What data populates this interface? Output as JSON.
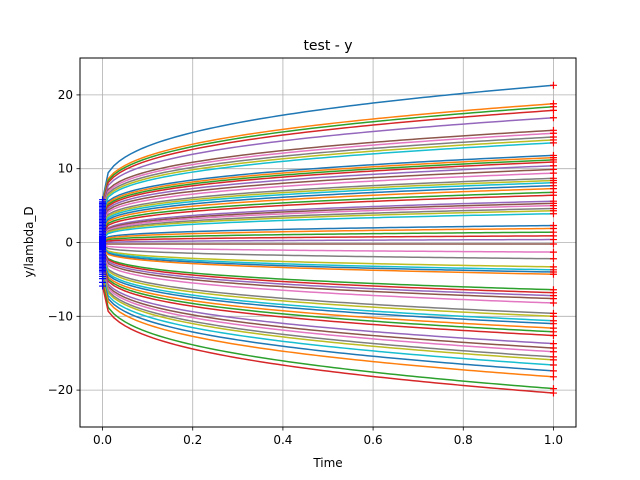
{
  "chart_data": {
    "type": "line",
    "title": "test - y",
    "xlabel": "Time",
    "ylabel": "y/lambda_D",
    "xlim": [
      -0.05,
      1.05
    ],
    "ylim": [
      -25,
      25
    ],
    "xticks": [
      0.0,
      0.2,
      0.4,
      0.6,
      0.8,
      1.0
    ],
    "xtick_labels": [
      "0.0",
      "0.2",
      "0.4",
      "0.6",
      "0.8",
      "1.0"
    ],
    "yticks": [
      -20,
      -10,
      0,
      10,
      20
    ],
    "ytick_labels": [
      "−20",
      "−10",
      "0",
      "10",
      "20"
    ],
    "grid": true,
    "start_marker": {
      "symbol": "+",
      "color": "#0000ff"
    },
    "end_marker": {
      "symbol": "+",
      "color": "#ff0000"
    },
    "curve_shape": "y(t) = y0 + (y1 - y0) * t^0.33",
    "palette": [
      "#1f77b4",
      "#ff7f0e",
      "#2ca02c",
      "#d62728",
      "#9467bd",
      "#8c564b",
      "#e377c2",
      "#7f7f7f",
      "#bcbd22",
      "#17becf"
    ],
    "series": [
      {
        "y0": 5.8,
        "y1": 21.3
      },
      {
        "y0": 5.5,
        "y1": 18.8
      },
      {
        "y0": 5.3,
        "y1": 18.4
      },
      {
        "y0": 5.1,
        "y1": 17.9
      },
      {
        "y0": 4.9,
        "y1": 16.9
      },
      {
        "y0": 4.7,
        "y1": 15.2
      },
      {
        "y0": 4.5,
        "y1": 14.8
      },
      {
        "y0": 4.3,
        "y1": 14.3
      },
      {
        "y0": 4.1,
        "y1": 13.9
      },
      {
        "y0": 3.9,
        "y1": 13.5
      },
      {
        "y0": 3.7,
        "y1": 11.8
      },
      {
        "y0": 3.5,
        "y1": 11.5
      },
      {
        "y0": 3.3,
        "y1": 11.2
      },
      {
        "y0": 3.1,
        "y1": 10.9
      },
      {
        "y0": 2.9,
        "y1": 10.4
      },
      {
        "y0": 2.7,
        "y1": 9.9
      },
      {
        "y0": 2.5,
        "y1": 9.4
      },
      {
        "y0": 2.3,
        "y1": 8.7
      },
      {
        "y0": 2.1,
        "y1": 8.4
      },
      {
        "y0": 1.9,
        "y1": 8.1
      },
      {
        "y0": 1.7,
        "y1": 7.7
      },
      {
        "y0": 1.5,
        "y1": 7.3
      },
      {
        "y0": 1.3,
        "y1": 6.8
      },
      {
        "y0": 1.1,
        "y1": 6.4
      },
      {
        "y0": 0.9,
        "y1": 5.6
      },
      {
        "y0": 0.8,
        "y1": 5.3
      },
      {
        "y0": 0.7,
        "y1": 5.0
      },
      {
        "y0": 0.6,
        "y1": 4.6
      },
      {
        "y0": 0.5,
        "y1": 4.3
      },
      {
        "y0": 0.4,
        "y1": 3.9
      },
      {
        "y0": 0.3,
        "y1": 2.3
      },
      {
        "y0": 0.2,
        "y1": 1.9
      },
      {
        "y0": 0.1,
        "y1": 1.4
      },
      {
        "y0": 0.0,
        "y1": 0.9
      },
      {
        "y0": -0.1,
        "y1": 0.4
      },
      {
        "y0": -0.2,
        "y1": -0.2
      },
      {
        "y0": -0.3,
        "y1": -1.3
      },
      {
        "y0": -0.4,
        "y1": -2.2
      },
      {
        "y0": -0.5,
        "y1": -3.3
      },
      {
        "y0": -0.6,
        "y1": -3.7
      },
      {
        "y0": -0.7,
        "y1": -4.0
      },
      {
        "y0": -0.8,
        "y1": -4.3
      },
      {
        "y0": -0.9,
        "y1": -6.4
      },
      {
        "y0": -1.0,
        "y1": -6.8
      },
      {
        "y0": -1.2,
        "y1": -7.2
      },
      {
        "y0": -1.4,
        "y1": -7.6
      },
      {
        "y0": -1.6,
        "y1": -8.2
      },
      {
        "y0": -1.8,
        "y1": -9.6
      },
      {
        "y0": -2.0,
        "y1": -10.0
      },
      {
        "y0": -2.2,
        "y1": -10.6
      },
      {
        "y0": -2.4,
        "y1": -11.0
      },
      {
        "y0": -2.6,
        "y1": -11.6
      },
      {
        "y0": -2.8,
        "y1": -12.1
      },
      {
        "y0": -3.0,
        "y1": -12.6
      },
      {
        "y0": -3.2,
        "y1": -13.7
      },
      {
        "y0": -3.4,
        "y1": -14.3
      },
      {
        "y0": -3.6,
        "y1": -14.8
      },
      {
        "y0": -3.8,
        "y1": -15.5
      },
      {
        "y0": -4.0,
        "y1": -15.9
      },
      {
        "y0": -4.3,
        "y1": -16.6
      },
      {
        "y0": -4.6,
        "y1": -17.4
      },
      {
        "y0": -4.9,
        "y1": -18.2
      },
      {
        "y0": -5.4,
        "y1": -19.8
      },
      {
        "y0": -5.9,
        "y1": -20.4
      }
    ]
  }
}
